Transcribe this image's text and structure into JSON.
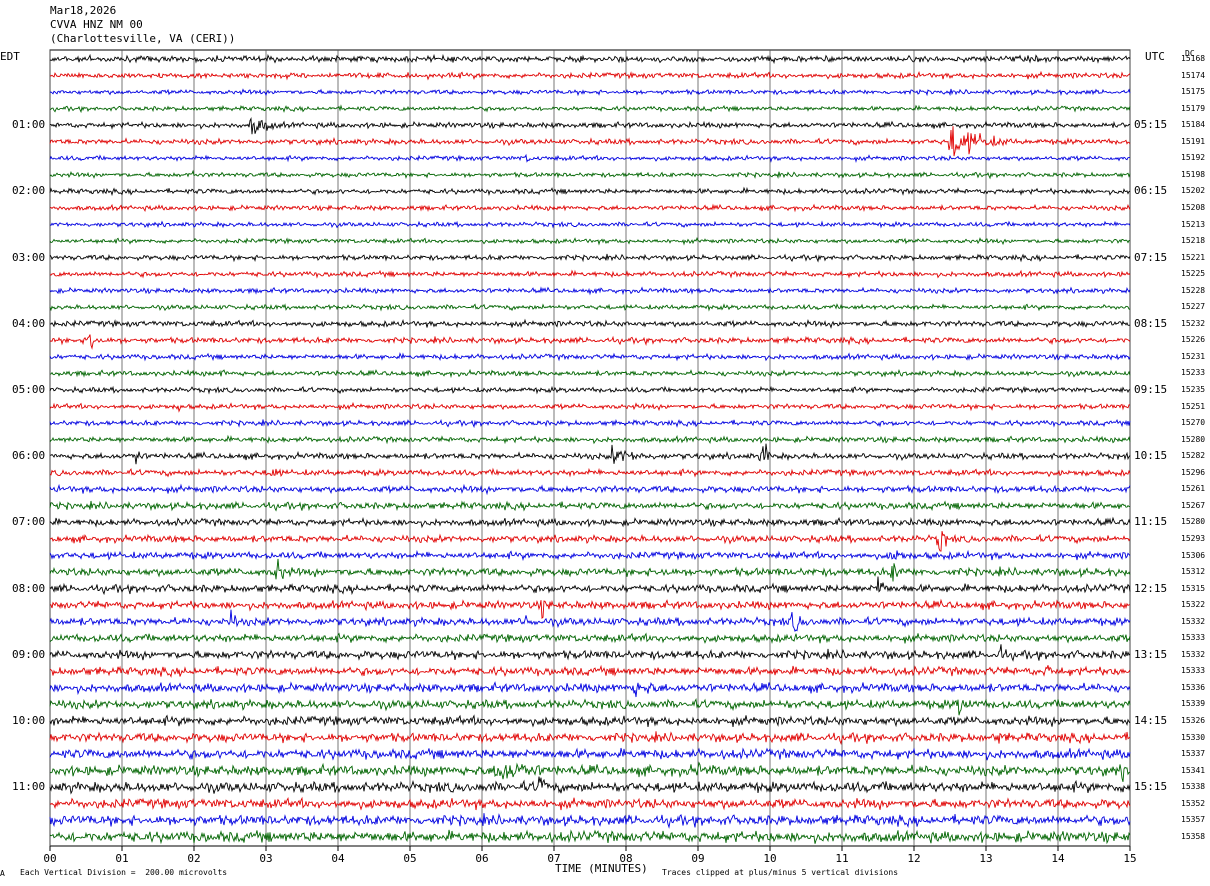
{
  "header": {
    "date": "Mar18,2026",
    "station": "CVVA HNZ NM 00",
    "location": "(Charlottesville, VA (CERI))"
  },
  "left_zone_label": "EDT",
  "right_zone_label": "UTC",
  "dc_label": "DC",
  "footer": {
    "left_mark": "A",
    "scale_note": "Each Vertical Division =  200.00 microvolts",
    "x_axis_title": "TIME (MINUTES)",
    "clip_note": "Traces clipped at plus/minus 5 vertical divisions"
  },
  "chart_data": {
    "type": "line",
    "title": "",
    "xlabel": "TIME (MINUTES)",
    "xlim": [
      0,
      15
    ],
    "x_ticks": [
      "00",
      "01",
      "02",
      "03",
      "04",
      "05",
      "06",
      "07",
      "08",
      "09",
      "10",
      "11",
      "12",
      "13",
      "14",
      "15"
    ],
    "left_time_labels": [
      "01:00",
      "02:00",
      "03:00",
      "04:00",
      "05:00",
      "06:00",
      "07:00",
      "08:00",
      "09:00",
      "10:00",
      "11:00"
    ],
    "right_time_labels": [
      "05:15",
      "06:15",
      "07:15",
      "08:15",
      "09:15",
      "10:15",
      "11:15",
      "12:15",
      "13:15",
      "14:15",
      "15:15"
    ],
    "trace_color_cycle": [
      "#000000",
      "#e00000",
      "#0000e0",
      "#006400"
    ],
    "trace_dc_offsets": [
      "15168",
      "15174",
      "15175",
      "15179",
      "15184",
      "15191",
      "15192",
      "15198",
      "15202",
      "15208",
      "15213",
      "15218",
      "15221",
      "15225",
      "15228",
      "15227",
      "15232",
      "15226",
      "15231",
      "15233",
      "15235",
      "15251",
      "15270",
      "15280",
      "15282",
      "15296",
      "15261",
      "15267",
      "15280",
      "15293",
      "15306",
      "15312",
      "15315",
      "15322",
      "15332",
      "15333",
      "15332",
      "15333",
      "15336",
      "15339",
      "15326",
      "15330",
      "15337",
      "15341",
      "15338",
      "15352",
      "15357",
      "15358"
    ],
    "trace_noise_levels": [
      2.0,
      1.8,
      1.5,
      1.5,
      1.8,
      1.8,
      1.5,
      1.5,
      1.7,
      1.6,
      1.5,
      1.5,
      1.7,
      1.7,
      1.6,
      1.6,
      1.9,
      1.9,
      1.7,
      1.7,
      1.7,
      1.7,
      1.7,
      1.8,
      2.0,
      2.0,
      2.2,
      2.3,
      2.3,
      2.3,
      2.3,
      2.6,
      2.6,
      2.6,
      2.6,
      2.6,
      2.8,
      2.8,
      2.9,
      2.9,
      3.0,
      3.0,
      3.2,
      3.4,
      3.4,
      3.2,
      3.4,
      3.6
    ],
    "events": [
      {
        "trace": 4,
        "minute": 2.8,
        "duration": 0.9,
        "amplitude": 8
      },
      {
        "trace": 5,
        "minute": 12.5,
        "duration": 1.4,
        "amplitude": 14
      },
      {
        "trace": 6,
        "minute": 6.6,
        "duration": 0.3,
        "amplitude": 4
      },
      {
        "trace": 7,
        "minute": 2.0,
        "duration": 0.2,
        "amplitude": 5
      },
      {
        "trace": 17,
        "minute": 0.55,
        "duration": 0.3,
        "amplitude": 14
      },
      {
        "trace": 19,
        "minute": 2.4,
        "duration": 0.2,
        "amplitude": 5
      },
      {
        "trace": 21,
        "minute": 1.8,
        "duration": 0.15,
        "amplitude": 5
      },
      {
        "trace": 24,
        "minute": 1.2,
        "duration": 0.15,
        "amplitude": 12
      },
      {
        "trace": 24,
        "minute": 7.8,
        "duration": 1.5,
        "amplitude": 7
      },
      {
        "trace": 24,
        "minute": 9.9,
        "duration": 0.2,
        "amplitude": 16
      },
      {
        "trace": 25,
        "minute": 3.1,
        "duration": 0.2,
        "amplitude": 10
      },
      {
        "trace": 26,
        "minute": 15.0,
        "duration": 0.2,
        "amplitude": 7
      },
      {
        "trace": 29,
        "minute": 12.35,
        "duration": 0.25,
        "amplitude": 14
      },
      {
        "trace": 30,
        "minute": 11.7,
        "duration": 0.5,
        "amplitude": 8
      },
      {
        "trace": 31,
        "minute": 3.15,
        "duration": 0.3,
        "amplitude": 14
      },
      {
        "trace": 31,
        "minute": 8.5,
        "duration": 0.3,
        "amplitude": 8
      },
      {
        "trace": 31,
        "minute": 11.7,
        "duration": 0.5,
        "amplitude": 9
      },
      {
        "trace": 32,
        "minute": 11.5,
        "duration": 0.3,
        "amplitude": 12
      },
      {
        "trace": 33,
        "minute": 6.85,
        "duration": 0.2,
        "amplitude": 12
      },
      {
        "trace": 34,
        "minute": 2.5,
        "duration": 0.3,
        "amplitude": 10
      },
      {
        "trace": 34,
        "minute": 6.6,
        "duration": 0.3,
        "amplitude": 9
      },
      {
        "trace": 34,
        "minute": 10.3,
        "duration": 0.6,
        "amplitude": 9
      },
      {
        "trace": 36,
        "minute": 13.2,
        "duration": 0.2,
        "amplitude": 11
      },
      {
        "trace": 37,
        "minute": 13.85,
        "duration": 0.3,
        "amplitude": 7
      },
      {
        "trace": 38,
        "minute": 8.1,
        "duration": 1.5,
        "amplitude": 7
      },
      {
        "trace": 39,
        "minute": 12.6,
        "duration": 0.6,
        "amplitude": 9
      },
      {
        "trace": 41,
        "minute": 13.2,
        "duration": 0.2,
        "amplitude": 8
      },
      {
        "trace": 43,
        "minute": 6.2,
        "duration": 1.8,
        "amplitude": 11
      },
      {
        "trace": 43,
        "minute": 9.0,
        "duration": 0.2,
        "amplitude": 8
      },
      {
        "trace": 43,
        "minute": 14.9,
        "duration": 0.2,
        "amplitude": 8
      },
      {
        "trace": 44,
        "minute": 6.8,
        "duration": 0.3,
        "amplitude": 12
      }
    ],
    "grid": "vertical lines at each minute"
  }
}
